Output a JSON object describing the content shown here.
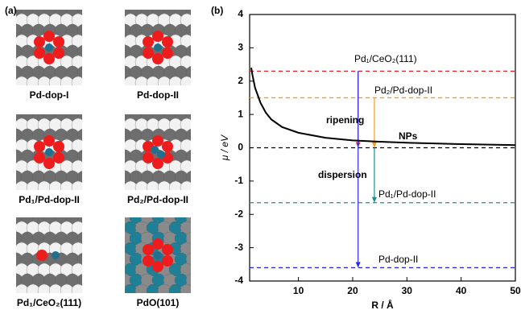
{
  "panel_a": {
    "label": "(a)",
    "structures": [
      "Pd-dop-I",
      "Pd-dop-II",
      "Pd₁/Pd-dop-II",
      "Pd₂/Pd-dop-II",
      "Pd₁/CeO₂(111)",
      "PdO(101)"
    ]
  },
  "chart_data": {
    "type": "line",
    "panel_label": "(b)",
    "x_label": "R / Å",
    "y_label": "μ / eV",
    "xlim": [
      1,
      50
    ],
    "ylim": [
      -4,
      4
    ],
    "xticks": [
      10,
      20,
      30,
      40,
      50
    ],
    "yticks": [
      -4,
      -3,
      -2,
      -1,
      0,
      1,
      2,
      3,
      4
    ],
    "series": [
      {
        "name": "NPs",
        "color": "#000000",
        "x": [
          1.3,
          1.5,
          2,
          3,
          4,
          5,
          7,
          10,
          15,
          20,
          25,
          30,
          40,
          50
        ],
        "values": [
          2.4,
          2.2,
          1.8,
          1.35,
          1.05,
          0.85,
          0.62,
          0.45,
          0.3,
          0.22,
          0.18,
          0.15,
          0.11,
          0.08
        ]
      }
    ],
    "hlines": [
      {
        "name": "Pd₁/CeO₂(111)",
        "color": "#e8202a",
        "value": 2.3
      },
      {
        "name": "Pd₂/Pd-dop-II",
        "color": "#f39c1f",
        "value": 1.5
      },
      {
        "name": null,
        "color": "#000000",
        "value": 0
      },
      {
        "name": "Pd₁/Pd-dop-II",
        "color": "#17928a",
        "value": -1.65
      },
      {
        "name": "Pd-dop-II",
        "color": "#2c2ce0",
        "value": -3.6
      }
    ],
    "arrows": [
      {
        "x": 21,
        "from": 2.3,
        "to": 0,
        "color": "#e8202a"
      },
      {
        "x": 24,
        "from": 1.5,
        "to": 0,
        "color": "#f39c1f"
      },
      {
        "x": 24,
        "from": 0,
        "to": -1.65,
        "color": "#17928a"
      },
      {
        "x": 21,
        "from": 2.3,
        "to": -3.6,
        "color": "#2c2ce0"
      }
    ],
    "annotations": [
      "ripening",
      "dispersion"
    ]
  }
}
